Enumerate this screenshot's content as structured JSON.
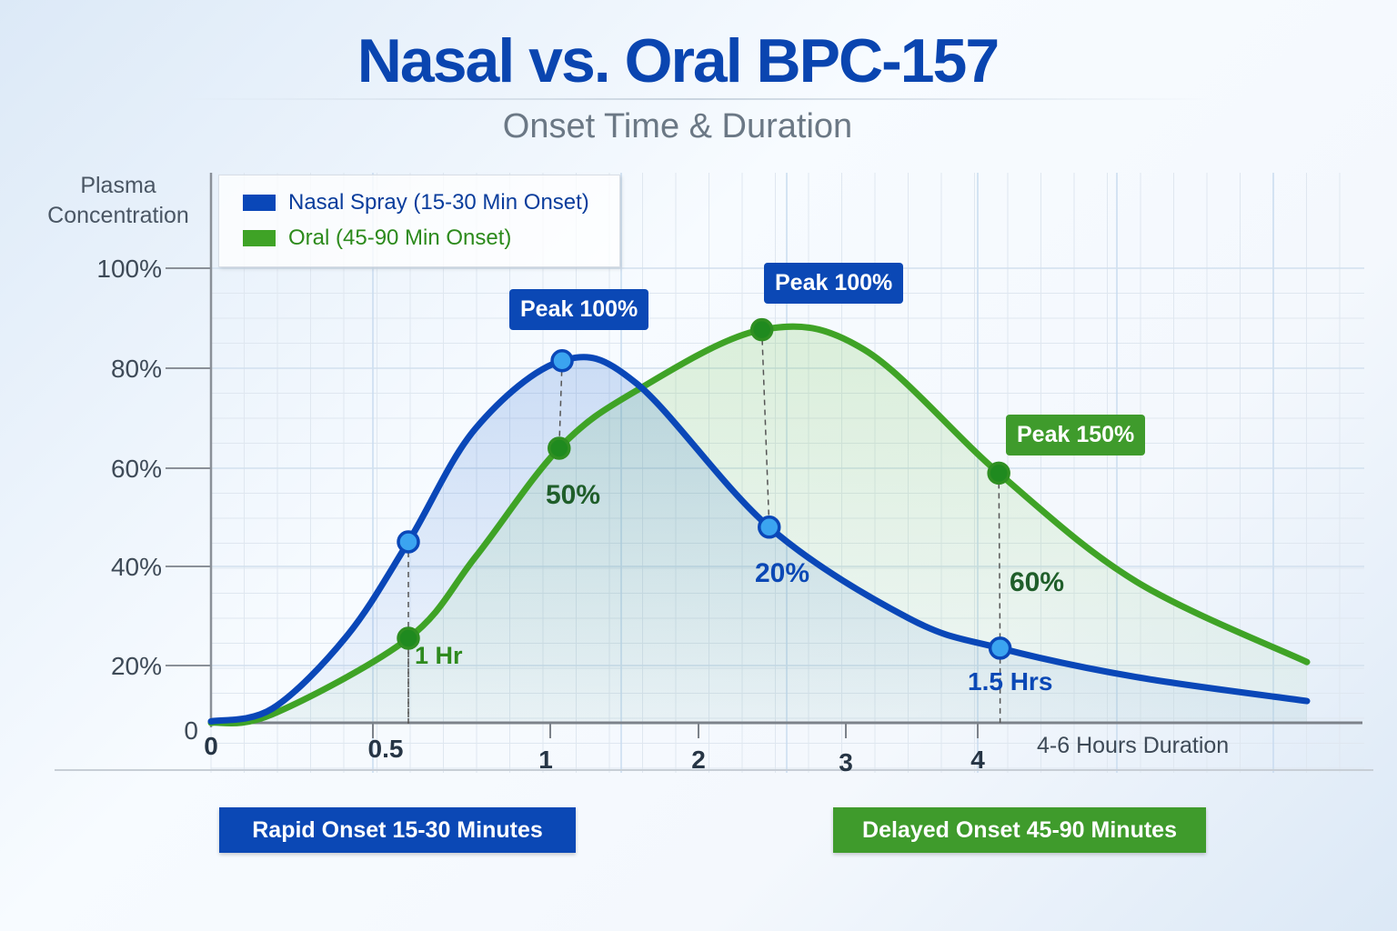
{
  "chart_data": {
    "type": "line",
    "title": "Nasal vs. Oral BPC-157",
    "subtitle": "Onset Time & Duration",
    "ylabel": "Plasma Concentration",
    "xlabel": "",
    "x_ticks": [
      "0",
      "0.5",
      "1",
      "2",
      "3",
      "4"
    ],
    "y_ticks": [
      "0",
      "20%",
      "40%",
      "60%",
      "80%",
      "100%"
    ],
    "ylim": [
      0,
      100
    ],
    "xlim": [
      0,
      6.5
    ],
    "grid": true,
    "legend_position": "top-left",
    "series": [
      {
        "name": "Nasal Spray (15-30 Min Onset)",
        "color": "#0a47b8",
        "x": [
          0,
          0.19,
          0.42,
          0.6,
          0.79,
          1.08,
          1.58,
          2.48,
          3.48,
          4.17,
          5.2,
          6.5
        ],
        "y": [
          0.5,
          5,
          26,
          45,
          68,
          81.5,
          77,
          48,
          29.5,
          23.5,
          16,
          7.6
        ],
        "markers": [
          {
            "x": 0.6,
            "y": 45
          },
          {
            "x": 1.08,
            "y": 81.5
          },
          {
            "x": 2.48,
            "y": 48
          },
          {
            "x": 4.17,
            "y": 23.5
          }
        ]
      },
      {
        "name": "Oral (45-90 Min Onset)",
        "color": "#3fa326",
        "x": [
          0,
          0.19,
          0.6,
          0.79,
          1.06,
          1.58,
          2.43,
          3.14,
          4.16,
          5.2,
          6.5
        ],
        "y": [
          0,
          3,
          25.5,
          42,
          64,
          75.5,
          87.7,
          83.7,
          59,
          37,
          20.7
        ],
        "markers": [
          {
            "x": 0.6,
            "y": 25.5
          },
          {
            "x": 1.06,
            "y": 64
          },
          {
            "x": 2.43,
            "y": 87.7
          },
          {
            "x": 4.16,
            "y": 59
          }
        ]
      }
    ],
    "annotations": {
      "nasal_peak": "Peak 100%",
      "oral_peak": "Peak 100%",
      "oral_late": "Peak 150%",
      "one_hr": "1 Hr",
      "fifty": "50%",
      "twenty": "20%",
      "sixty": "60%",
      "one_five_hrs": "1.5 Hrs",
      "duration": "4-6 Hours Duration"
    }
  },
  "bottom": {
    "rapid": "Rapid Onset  15-30 Minutes",
    "delayed": "Delayed Onset 45-90 Minutes"
  },
  "colors": {
    "blue": "#0a47b8",
    "green": "#3fa326",
    "blue_box": "#0b48b5",
    "green_box": "#3f9b2c"
  }
}
